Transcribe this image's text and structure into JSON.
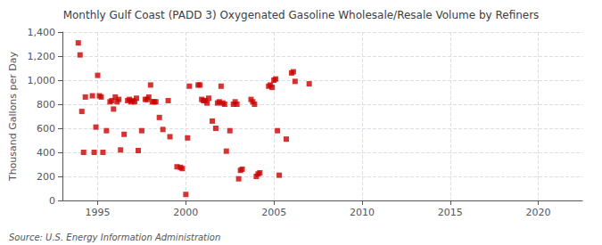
{
  "chart_data": {
    "type": "scatter",
    "title": "Monthly Gulf Coast (PADD 3) Oxygenated Gasoline Wholesale/Resale Volume by Refiners",
    "ylabel": "Thousand Gallons per Day",
    "source": "Source: U.S. Energy Information Administration",
    "color": "#cc0000",
    "marker": "square",
    "grid": true,
    "xlim": [
      1993.0,
      2022.5
    ],
    "ylim": [
      0,
      1400
    ],
    "xticks": [
      1995,
      2000,
      2005,
      2010,
      2015,
      2020
    ],
    "yticks": [
      0,
      200,
      400,
      600,
      800,
      {
        "value": 1000,
        "label": "1,000"
      },
      {
        "value": 1200,
        "label": "1,200"
      },
      {
        "value": 1400,
        "label": "1,400"
      }
    ],
    "x": [
      1993.9,
      1994.0,
      1994.1,
      1994.2,
      1994.3,
      1994.7,
      1994.8,
      1994.9,
      1995.0,
      1995.1,
      1995.2,
      1995.3,
      1995.5,
      1995.7,
      1995.8,
      1995.9,
      1996.0,
      1996.1,
      1996.2,
      1996.3,
      1996.5,
      1996.7,
      1996.8,
      1996.9,
      1997.0,
      1997.1,
      1997.2,
      1997.3,
      1997.5,
      1997.7,
      1997.8,
      1997.9,
      1998.0,
      1998.1,
      1998.2,
      1998.3,
      1998.5,
      1998.7,
      1999.0,
      1999.1,
      1999.5,
      1999.7,
      1999.8,
      2000.0,
      2000.1,
      2000.2,
      2000.7,
      2000.8,
      2000.9,
      2001.0,
      2001.1,
      2001.2,
      2001.3,
      2001.5,
      2001.7,
      2001.8,
      2001.9,
      2002.0,
      2002.1,
      2002.2,
      2002.3,
      2002.5,
      2002.7,
      2002.8,
      2002.9,
      2003.0,
      2003.1,
      2003.2,
      2003.7,
      2003.8,
      2003.9,
      2004.0,
      2004.1,
      2004.2,
      2004.7,
      2004.8,
      2004.9,
      2005.0,
      2005.1,
      2005.2,
      2005.3,
      2005.7,
      2006.0,
      2006.1,
      2006.2,
      2007.0
    ],
    "values": [
      1310,
      1210,
      740,
      400,
      860,
      870,
      400,
      610,
      1040,
      870,
      860,
      400,
      580,
      820,
      830,
      760,
      860,
      820,
      840,
      420,
      550,
      830,
      840,
      820,
      830,
      820,
      850,
      415,
      580,
      840,
      840,
      860,
      960,
      820,
      820,
      820,
      690,
      590,
      830,
      530,
      280,
      275,
      265,
      50,
      520,
      950,
      960,
      960,
      840,
      830,
      830,
      810,
      850,
      660,
      600,
      810,
      820,
      950,
      810,
      800,
      410,
      580,
      800,
      820,
      800,
      180,
      250,
      260,
      840,
      820,
      800,
      200,
      220,
      230,
      950,
      960,
      940,
      1000,
      1010,
      580,
      210,
      510,
      1060,
      1070,
      990,
      970
    ]
  }
}
